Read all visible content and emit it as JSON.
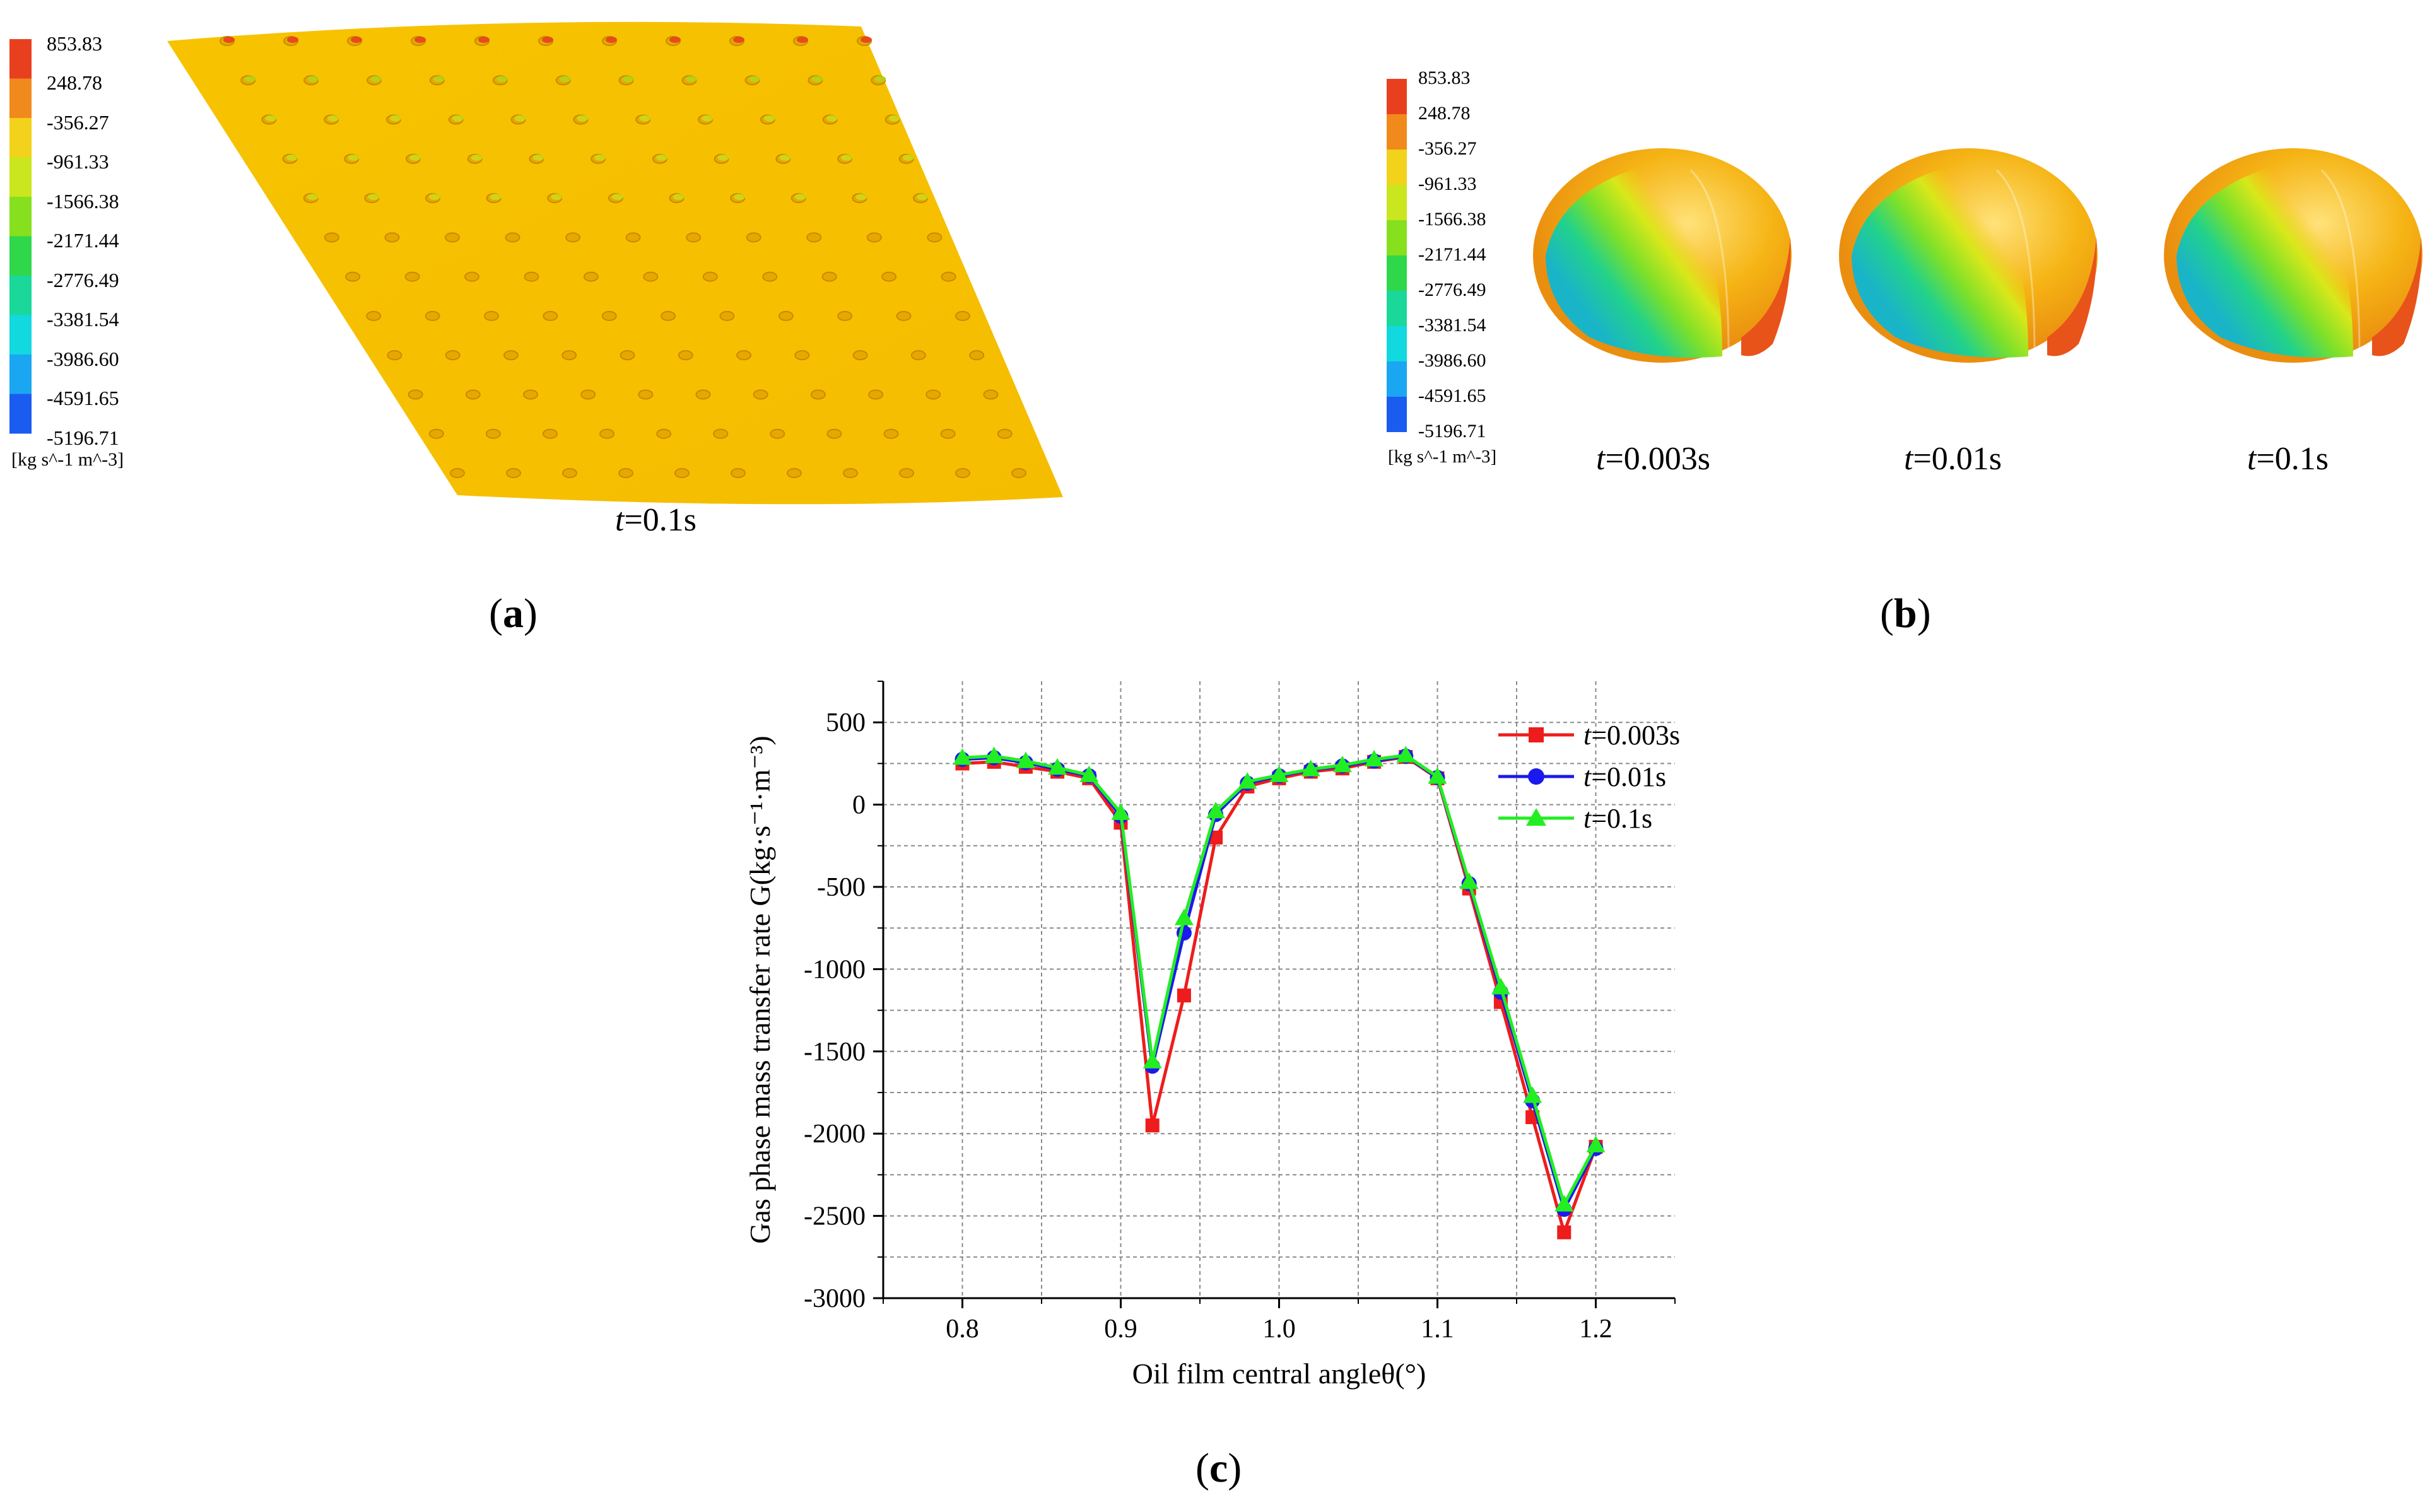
{
  "colorbar": {
    "values": [
      "853.83",
      "248.78",
      "-356.27",
      "-961.33",
      "-1566.38",
      "-2171.44",
      "-2776.49",
      "-3381.54",
      "-3986.60",
      "-4591.65",
      "-5196.71"
    ],
    "unit": "[kg s^-1 m^-3]",
    "colors": [
      "#e8401e",
      "#f08a1c",
      "#f2d21a",
      "#c9e61e",
      "#86e01e",
      "#2ed84a",
      "#1ad89a",
      "#12d8e0",
      "#1aa6f0",
      "#1a5cf0"
    ]
  },
  "panel_a": {
    "label_letter": "a",
    "time_prefix": "t",
    "time_value": "=0.1s"
  },
  "panel_b": {
    "label_letter": "b",
    "times": [
      {
        "prefix": "t",
        "value": "=0.003s"
      },
      {
        "prefix": "t",
        "value": "=0.01s"
      },
      {
        "prefix": "t",
        "value": "=0.1s"
      }
    ]
  },
  "panel_c": {
    "label_letter": "c"
  },
  "chart_data": {
    "type": "line",
    "xlabel": "Oil film central angleθ(°)",
    "ylabel": "Gas phase mass transfer rate G(kg·s⁻¹·m⁻³)",
    "xlim": [
      0.75,
      1.25
    ],
    "ylim": [
      -3000,
      750
    ],
    "xticks": [
      0.8,
      0.9,
      1.0,
      1.1,
      1.2
    ],
    "xtick_labels": [
      "0.8",
      "0.9",
      "1.0",
      "1.1",
      "1.2"
    ],
    "yticks": [
      500,
      0,
      -500,
      -1000,
      -1500,
      -2000,
      -2500,
      -3000
    ],
    "ytick_labels": [
      "500",
      "0",
      "-500",
      "-1000",
      "-1500",
      "-2000",
      "-2500",
      "-3000"
    ],
    "grid": true,
    "legend_position": "top-right",
    "x": [
      0.8,
      0.82,
      0.84,
      0.86,
      0.88,
      0.9,
      0.92,
      0.94,
      0.96,
      0.98,
      1.0,
      1.02,
      1.04,
      1.06,
      1.08,
      1.1,
      1.12,
      1.14,
      1.16,
      1.18,
      1.2
    ],
    "series": [
      {
        "name": "t=0.003s",
        "label_prefix": "t",
        "label_rest": "=0.003s",
        "color": "#ee1c1c",
        "marker": "square",
        "values": [
          250,
          260,
          230,
          200,
          160,
          -110,
          -1950,
          -1160,
          -200,
          110,
          160,
          200,
          220,
          260,
          290,
          160,
          -510,
          -1200,
          -1900,
          -2600,
          -2080
        ]
      },
      {
        "name": "t=0.01s",
        "label_prefix": "t",
        "label_rest": "=0.01s",
        "color": "#1a1aee",
        "marker": "circle",
        "values": [
          275,
          285,
          255,
          215,
          175,
          -70,
          -1590,
          -780,
          -60,
          130,
          175,
          210,
          235,
          265,
          295,
          165,
          -480,
          -1140,
          -1800,
          -2460,
          -2090
        ]
      },
      {
        "name": "t=0.1s",
        "label_prefix": "t",
        "label_rest": "=0.1s",
        "color": "#22ee22",
        "marker": "triangle",
        "values": [
          285,
          295,
          265,
          225,
          180,
          -50,
          -1560,
          -690,
          -40,
          140,
          180,
          215,
          240,
          275,
          300,
          170,
          -470,
          -1110,
          -1770,
          -2430,
          -2070
        ]
      }
    ]
  }
}
